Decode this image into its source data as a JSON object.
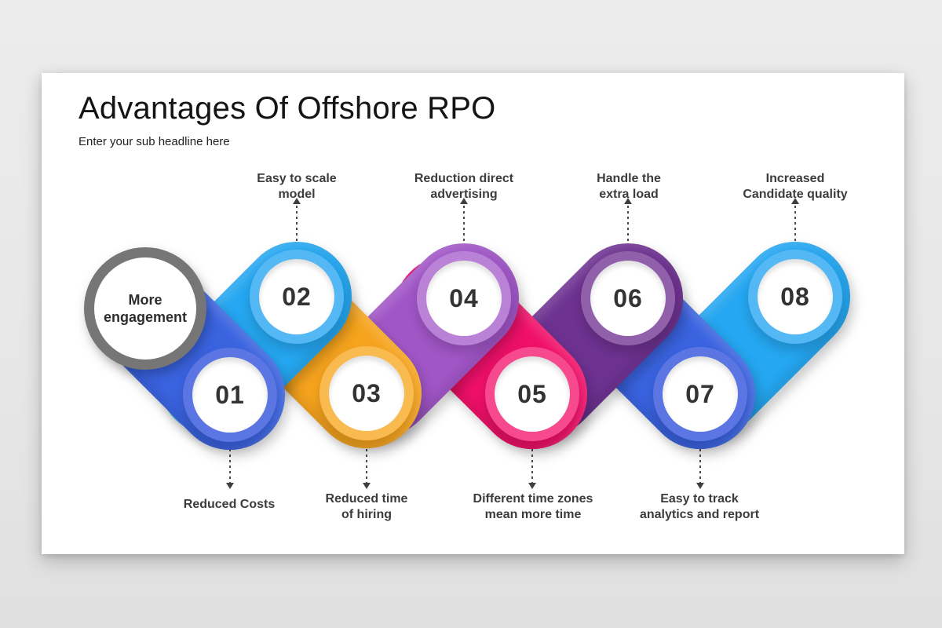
{
  "header": {
    "title": "Advantages Of Offshore RPO",
    "subtitle": "Enter your sub headline here"
  },
  "start": {
    "line1": "More",
    "line2": "engagement",
    "ring_color": "#767676"
  },
  "steps": [
    {
      "number": "01",
      "label_line1": "Reduced Costs",
      "label_line2": "",
      "capsule_color": "#3A63E0",
      "ring_color": "#5B76E3"
    },
    {
      "number": "02",
      "label_line1": "Easy to scale",
      "label_line2": "model",
      "capsule_color": "#25A7F1",
      "ring_color": "#54B8F4"
    },
    {
      "number": "03",
      "label_line1": "Reduced time",
      "label_line2": "of hiring",
      "capsule_color": "#F6A41E",
      "ring_color": "#F9BB50"
    },
    {
      "number": "04",
      "label_line1": "Reduction direct",
      "label_line2": "advertising",
      "capsule_color": "#A156C7",
      "ring_color": "#BA82D7"
    },
    {
      "number": "05",
      "label_line1": "Different time zones",
      "label_line2": "mean more time",
      "capsule_color": "#F01069",
      "ring_color": "#F6498E"
    },
    {
      "number": "06",
      "label_line1": "Handle the",
      "label_line2": "extra load",
      "capsule_color": "#6E3291",
      "ring_color": "#9160AB"
    },
    {
      "number": "07",
      "label_line1": "Easy to track",
      "label_line2": "analytics and report",
      "capsule_color": "#3A63E0",
      "ring_color": "#5B76E3"
    },
    {
      "number": "08",
      "label_line1": "Increased",
      "label_line2": "Candidate quality",
      "capsule_color": "#25A7F1",
      "ring_color": "#54B8F4"
    }
  ]
}
